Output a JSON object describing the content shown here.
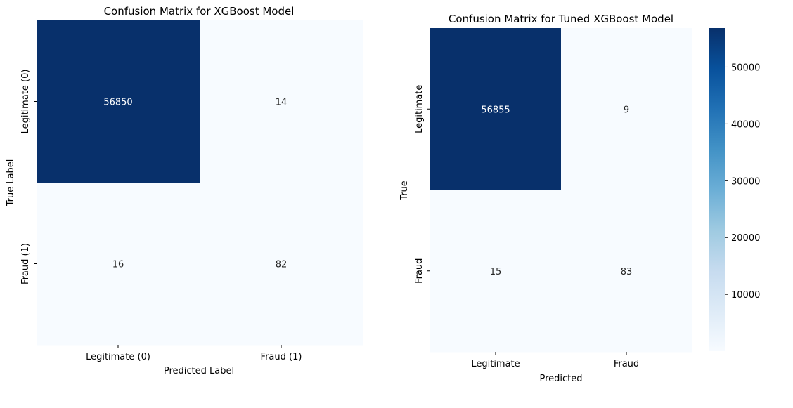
{
  "chart_data": [
    {
      "type": "heatmap",
      "title": "Confusion Matrix for XGBoost Model",
      "xlabel": "Predicted Label",
      "ylabel": "True Label",
      "x_categories": [
        "Legitimate (0)",
        "Fraud (1)"
      ],
      "y_categories": [
        "Legitimate (0)",
        "Fraud (1)"
      ],
      "values": [
        [
          56850,
          14
        ],
        [
          16,
          82
        ]
      ],
      "colormap": "Blues",
      "colorbar": false
    },
    {
      "type": "heatmap",
      "title": "Confusion Matrix for Tuned XGBoost Model",
      "xlabel": "Predicted",
      "ylabel": "True",
      "x_categories": [
        "Legitimate",
        "Fraud"
      ],
      "y_categories": [
        "Legitimate",
        "Fraud"
      ],
      "values": [
        [
          56855,
          9
        ],
        [
          15,
          83
        ]
      ],
      "colormap": "Blues",
      "colorbar": true,
      "colorbar_ticks": [
        10000,
        20000,
        30000,
        40000,
        50000
      ]
    }
  ],
  "colors": {
    "cmap_low": "#f7fbff",
    "cmap_high": "#08306b",
    "text_on_dark": "#ffffff",
    "text_on_light": "#262626"
  }
}
